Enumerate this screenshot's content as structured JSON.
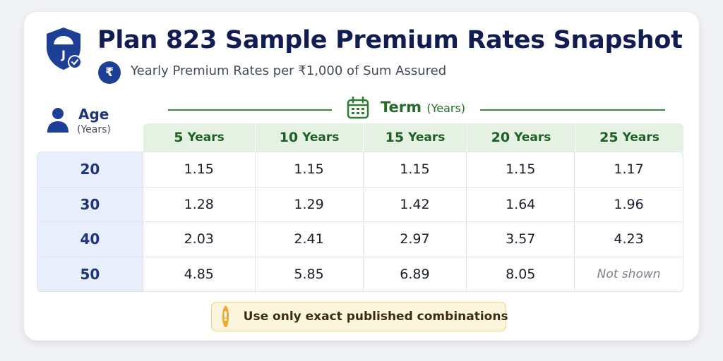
{
  "header": {
    "title": "Plan 823 Sample Premium Rates Snapshot",
    "subtitle_symbol": "₹",
    "subtitle": "Yearly Premium Rates per ₹1,000 of Sum Assured",
    "shield_letter": "J"
  },
  "axes": {
    "age_label": "Age",
    "age_unit": "(Years)",
    "term_label": "Term",
    "term_unit": "(Years)"
  },
  "columns": [
    {
      "value": "5",
      "unit": "Years"
    },
    {
      "value": "10",
      "unit": "Years"
    },
    {
      "value": "15",
      "unit": "Years"
    },
    {
      "value": "20",
      "unit": "Years"
    },
    {
      "value": "25",
      "unit": "Years"
    }
  ],
  "rows": [
    {
      "age": "20",
      "values": [
        "1.15",
        "1.15",
        "1.15",
        "1.15",
        "1.17"
      ]
    },
    {
      "age": "30",
      "values": [
        "1.28",
        "1.29",
        "1.42",
        "1.64",
        "1.96"
      ]
    },
    {
      "age": "40",
      "values": [
        "2.03",
        "2.41",
        "2.97",
        "3.57",
        "4.23"
      ]
    },
    {
      "age": "50",
      "values": [
        "4.85",
        "5.85",
        "6.89",
        "8.05",
        "Not shown"
      ]
    }
  ],
  "note": {
    "symbol": "!",
    "text": "Use only exact published combinations"
  },
  "colors": {
    "title": "#101c52",
    "term_green": "#256b2a",
    "header_bg": "#e5f2e3",
    "age_bg": "#e8eefb",
    "note_bg": "#fdf6de",
    "warn": "#f5a623"
  }
}
